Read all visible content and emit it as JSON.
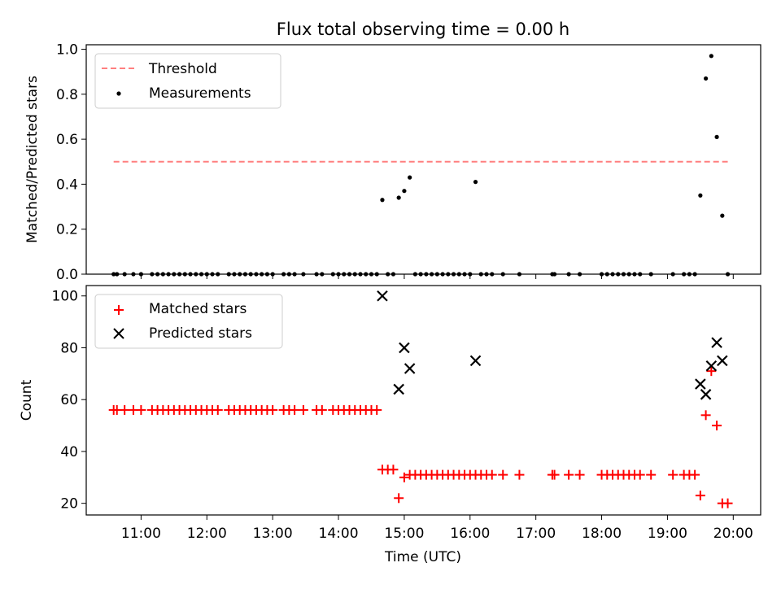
{
  "chart_data": [
    {
      "type": "scatter",
      "title": "Flux total observing time = 0.00 h",
      "ylabel": "Matched/Predicted stars",
      "xlabel": "",
      "ylim": [
        0,
        1.02
      ],
      "yticks": [
        "0.0",
        "0.2",
        "0.4",
        "0.6",
        "0.8",
        "1.0"
      ],
      "grid": false,
      "legend_position": "upper-left",
      "threshold": {
        "name": "Threshold",
        "value": 0.5,
        "color": "#ff7f7f",
        "x_start": "10:35",
        "x_end": "19:55"
      },
      "series": [
        {
          "name": "Measurements",
          "color": "#000000",
          "points": [
            [
              "10:35",
              0
            ],
            [
              "10:38",
              0
            ],
            [
              "10:45",
              0
            ],
            [
              "10:53",
              0
            ],
            [
              "11:00",
              0
            ],
            [
              "11:10",
              0
            ],
            [
              "11:15",
              0
            ],
            [
              "11:20",
              0
            ],
            [
              "11:25",
              0
            ],
            [
              "11:30",
              0
            ],
            [
              "11:35",
              0
            ],
            [
              "11:40",
              0
            ],
            [
              "11:45",
              0
            ],
            [
              "11:50",
              0
            ],
            [
              "11:55",
              0
            ],
            [
              "12:00",
              0
            ],
            [
              "12:05",
              0
            ],
            [
              "12:10",
              0
            ],
            [
              "12:20",
              0
            ],
            [
              "12:25",
              0
            ],
            [
              "12:30",
              0
            ],
            [
              "12:35",
              0
            ],
            [
              "12:40",
              0
            ],
            [
              "12:45",
              0
            ],
            [
              "12:50",
              0
            ],
            [
              "12:55",
              0
            ],
            [
              "13:00",
              0
            ],
            [
              "13:10",
              0
            ],
            [
              "13:15",
              0
            ],
            [
              "13:20",
              0
            ],
            [
              "13:28",
              0
            ],
            [
              "13:40",
              0
            ],
            [
              "13:45",
              0
            ],
            [
              "13:55",
              0
            ],
            [
              "14:00",
              0
            ],
            [
              "14:05",
              0
            ],
            [
              "14:10",
              0
            ],
            [
              "14:15",
              0
            ],
            [
              "14:20",
              0
            ],
            [
              "14:25",
              0
            ],
            [
              "14:30",
              0
            ],
            [
              "14:35",
              0
            ],
            [
              "14:40",
              0.33
            ],
            [
              "14:45",
              0
            ],
            [
              "14:50",
              0
            ],
            [
              "14:55",
              0.34
            ],
            [
              "15:00",
              0.37
            ],
            [
              "15:05",
              0.43
            ],
            [
              "15:10",
              0
            ],
            [
              "15:15",
              0
            ],
            [
              "15:20",
              0
            ],
            [
              "15:25",
              0
            ],
            [
              "15:30",
              0
            ],
            [
              "15:35",
              0
            ],
            [
              "15:40",
              0
            ],
            [
              "15:45",
              0
            ],
            [
              "15:50",
              0
            ],
            [
              "15:55",
              0
            ],
            [
              "16:00",
              0
            ],
            [
              "16:05",
              0.41
            ],
            [
              "16:10",
              0
            ],
            [
              "16:15",
              0
            ],
            [
              "16:20",
              0
            ],
            [
              "16:30",
              0
            ],
            [
              "16:45",
              0
            ],
            [
              "17:15",
              0
            ],
            [
              "17:17",
              0
            ],
            [
              "17:30",
              0
            ],
            [
              "17:40",
              0
            ],
            [
              "18:00",
              0
            ],
            [
              "18:05",
              0
            ],
            [
              "18:10",
              0
            ],
            [
              "18:15",
              0
            ],
            [
              "18:20",
              0
            ],
            [
              "18:25",
              0
            ],
            [
              "18:30",
              0
            ],
            [
              "18:35",
              0
            ],
            [
              "18:45",
              0
            ],
            [
              "19:05",
              0
            ],
            [
              "19:15",
              0
            ],
            [
              "19:20",
              0
            ],
            [
              "19:25",
              0
            ],
            [
              "19:30",
              0.35
            ],
            [
              "19:35",
              0.87
            ],
            [
              "19:40",
              0.97
            ],
            [
              "19:45",
              0.61
            ],
            [
              "19:50",
              0.26
            ],
            [
              "19:55",
              0
            ]
          ]
        }
      ]
    },
    {
      "type": "scatter",
      "title": "",
      "xlabel": "Time (UTC)",
      "ylabel": "Count",
      "xlim": [
        "10:10",
        "20:25"
      ],
      "ylim": [
        15.5,
        104
      ],
      "xticks": [
        "11:00",
        "12:00",
        "13:00",
        "14:00",
        "15:00",
        "16:00",
        "17:00",
        "18:00",
        "19:00",
        "20:00"
      ],
      "yticks": [
        "20",
        "40",
        "60",
        "80",
        "100"
      ],
      "grid": false,
      "legend_position": "upper-left",
      "series": [
        {
          "name": "Matched stars",
          "marker": "+",
          "color": "#ff0000",
          "points": [
            [
              "10:35",
              56
            ],
            [
              "10:38",
              56
            ],
            [
              "10:45",
              56
            ],
            [
              "10:53",
              56
            ],
            [
              "11:00",
              56
            ],
            [
              "11:10",
              56
            ],
            [
              "11:15",
              56
            ],
            [
              "11:20",
              56
            ],
            [
              "11:25",
              56
            ],
            [
              "11:30",
              56
            ],
            [
              "11:35",
              56
            ],
            [
              "11:40",
              56
            ],
            [
              "11:45",
              56
            ],
            [
              "11:50",
              56
            ],
            [
              "11:55",
              56
            ],
            [
              "12:00",
              56
            ],
            [
              "12:05",
              56
            ],
            [
              "12:10",
              56
            ],
            [
              "12:20",
              56
            ],
            [
              "12:25",
              56
            ],
            [
              "12:30",
              56
            ],
            [
              "12:35",
              56
            ],
            [
              "12:40",
              56
            ],
            [
              "12:45",
              56
            ],
            [
              "12:50",
              56
            ],
            [
              "12:55",
              56
            ],
            [
              "13:00",
              56
            ],
            [
              "13:10",
              56
            ],
            [
              "13:15",
              56
            ],
            [
              "13:20",
              56
            ],
            [
              "13:28",
              56
            ],
            [
              "13:40",
              56
            ],
            [
              "13:45",
              56
            ],
            [
              "13:55",
              56
            ],
            [
              "14:00",
              56
            ],
            [
              "14:05",
              56
            ],
            [
              "14:10",
              56
            ],
            [
              "14:15",
              56
            ],
            [
              "14:20",
              56
            ],
            [
              "14:25",
              56
            ],
            [
              "14:30",
              56
            ],
            [
              "14:35",
              56
            ],
            [
              "14:40",
              33
            ],
            [
              "14:45",
              33
            ],
            [
              "14:50",
              33
            ],
            [
              "14:55",
              22
            ],
            [
              "15:00",
              30
            ],
            [
              "15:05",
              31
            ],
            [
              "15:10",
              31
            ],
            [
              "15:15",
              31
            ],
            [
              "15:20",
              31
            ],
            [
              "15:25",
              31
            ],
            [
              "15:30",
              31
            ],
            [
              "15:35",
              31
            ],
            [
              "15:40",
              31
            ],
            [
              "15:45",
              31
            ],
            [
              "15:50",
              31
            ],
            [
              "15:55",
              31
            ],
            [
              "16:00",
              31
            ],
            [
              "16:05",
              31
            ],
            [
              "16:10",
              31
            ],
            [
              "16:15",
              31
            ],
            [
              "16:20",
              31
            ],
            [
              "16:30",
              31
            ],
            [
              "16:45",
              31
            ],
            [
              "17:15",
              31
            ],
            [
              "17:17",
              31
            ],
            [
              "17:30",
              31
            ],
            [
              "17:40",
              31
            ],
            [
              "18:00",
              31
            ],
            [
              "18:05",
              31
            ],
            [
              "18:10",
              31
            ],
            [
              "18:15",
              31
            ],
            [
              "18:20",
              31
            ],
            [
              "18:25",
              31
            ],
            [
              "18:30",
              31
            ],
            [
              "18:35",
              31
            ],
            [
              "18:45",
              31
            ],
            [
              "19:05",
              31
            ],
            [
              "19:15",
              31
            ],
            [
              "19:20",
              31
            ],
            [
              "19:25",
              31
            ],
            [
              "19:30",
              23
            ],
            [
              "19:35",
              54
            ],
            [
              "19:40",
              71
            ],
            [
              "19:45",
              50
            ],
            [
              "19:50",
              20
            ],
            [
              "19:55",
              20
            ]
          ]
        },
        {
          "name": "Predicted stars",
          "marker": "x",
          "color": "#000000",
          "points": [
            [
              "14:40",
              100
            ],
            [
              "14:55",
              64
            ],
            [
              "15:00",
              80
            ],
            [
              "15:05",
              72
            ],
            [
              "16:05",
              75
            ],
            [
              "19:30",
              66
            ],
            [
              "19:35",
              62
            ],
            [
              "19:40",
              73
            ],
            [
              "19:45",
              82
            ],
            [
              "19:50",
              75
            ]
          ]
        }
      ]
    }
  ]
}
